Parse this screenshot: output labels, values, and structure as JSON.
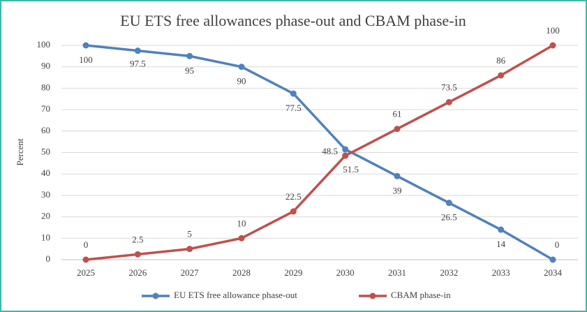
{
  "chart_data": {
    "type": "line",
    "title": "EU ETS free allowances phase-out and CBAM phase-in",
    "y_label": "Percent",
    "categories": [
      "2025",
      "2026",
      "2027",
      "2028",
      "2029",
      "2030",
      "2031",
      "2032",
      "2033",
      "2034"
    ],
    "series": [
      {
        "name": "EU ETS free allowance phase-out",
        "color": "#4f81bd",
        "values": [
          100,
          97.5,
          95,
          90,
          77.5,
          51.5,
          39,
          26.5,
          14,
          0
        ]
      },
      {
        "name": "CBAM phase-in",
        "color": "#c0504d",
        "values": [
          0,
          2.5,
          5,
          10,
          22.5,
          48.5,
          61,
          73.5,
          86,
          100
        ]
      }
    ],
    "ylim": [
      0,
      100
    ],
    "yticks": [
      0,
      10,
      20,
      30,
      40,
      50,
      60,
      70,
      80,
      90,
      100
    ],
    "grid": true
  }
}
